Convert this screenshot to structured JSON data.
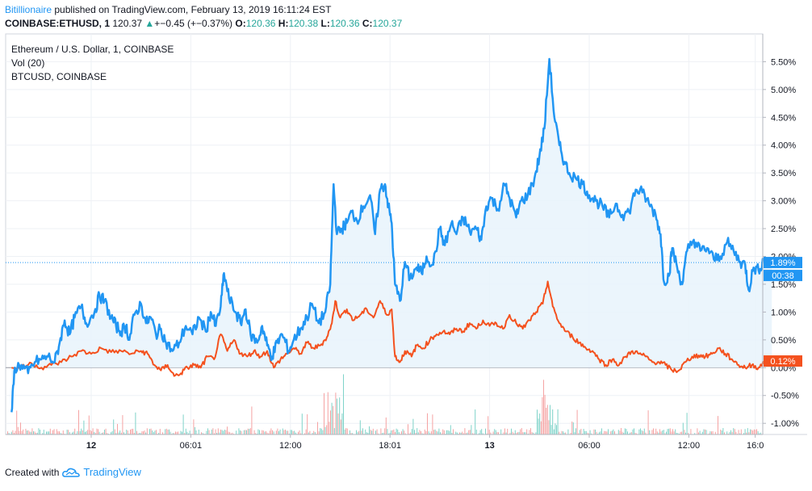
{
  "header": {
    "author": "Bitillionaire",
    "published_text": "published on TradingView.com, February 13, 2019 16:11:24 EST",
    "symbol": "COINBASE:ETHUSD, 1",
    "last": "120.37",
    "change_arrow": "▲",
    "change": "+−0.45 (+−0.37%)",
    "o_label": "O:",
    "o_value": "120.36",
    "h_label": "H:",
    "h_value": "120.38",
    "l_label": "L:",
    "l_value": "120.36",
    "c_label": "C:",
    "c_value": "120.37"
  },
  "legend": {
    "main": "Ethereum / U.S. Dollar, 1, COINBASE",
    "vol": "Vol (20)",
    "compare": "BTCUSD, COINBASE"
  },
  "badges": {
    "eth_pct": "1.89%",
    "eth_countdown": "00:38",
    "btc_pct": "0.12%"
  },
  "footer": {
    "created_with": "Created with",
    "brand": "TradingView"
  },
  "colors": {
    "eth": "#2196f3",
    "btc": "#f4511e",
    "area": "#e8f3fc",
    "grid": "#eef1f5",
    "vol_up": "#7fd3c9",
    "vol_down": "#f5a3a3"
  },
  "chart_data": {
    "type": "line",
    "y_unit": "%",
    "ylim": [
      -1.3,
      5.85
    ],
    "y_ticks": [
      "5.50%",
      "5.00%",
      "4.50%",
      "4.00%",
      "3.50%",
      "3.00%",
      "2.50%",
      "2.00%",
      "1.50%",
      "1.00%",
      "0.50%",
      "0.00%",
      "-0.50%",
      "-1.00%"
    ],
    "y_tick_values": [
      5.5,
      5.0,
      4.5,
      4.0,
      3.5,
      3.0,
      2.5,
      2.0,
      1.5,
      1.0,
      0.5,
      0.0,
      -0.5,
      -1.0
    ],
    "x_ticks": [
      "12",
      "06:01",
      "12:00",
      "18:01",
      "13",
      "06:00",
      "12:00",
      "16:0"
    ],
    "x_tick_hours": [
      0,
      6,
      12,
      18,
      24,
      30,
      36,
      40
    ],
    "x_range_hours": [
      -4.8,
      41
    ],
    "series": [
      {
        "name": "Ethereum / U.S. Dollar",
        "points": [
          [
            -4.8,
            -0.8
          ],
          [
            -4.6,
            0.0
          ],
          [
            -4.2,
            0.05
          ],
          [
            -3.8,
            -0.1
          ],
          [
            -3.4,
            0.1
          ],
          [
            -3.0,
            0.15
          ],
          [
            -2.6,
            0.2
          ],
          [
            -2.2,
            0.1
          ],
          [
            -1.9,
            0.45
          ],
          [
            -1.6,
            0.85
          ],
          [
            -1.3,
            0.6
          ],
          [
            -1.0,
            0.9
          ],
          [
            -0.6,
            1.1
          ],
          [
            -0.3,
            0.8
          ],
          [
            0.2,
            1.0
          ],
          [
            0.5,
            1.3
          ],
          [
            0.8,
            1.2
          ],
          [
            1.2,
            0.9
          ],
          [
            1.5,
            0.75
          ],
          [
            1.8,
            0.65
          ],
          [
            2.1,
            0.75
          ],
          [
            2.3,
            0.5
          ],
          [
            2.6,
            0.95
          ],
          [
            3.0,
            1.15
          ],
          [
            3.3,
            0.8
          ],
          [
            3.6,
            0.9
          ],
          [
            3.9,
            0.6
          ],
          [
            4.2,
            0.7
          ],
          [
            4.5,
            0.45
          ],
          [
            4.9,
            0.3
          ],
          [
            5.3,
            0.45
          ],
          [
            5.7,
            0.75
          ],
          [
            6.1,
            0.6
          ],
          [
            6.5,
            0.9
          ],
          [
            6.9,
            0.65
          ],
          [
            7.2,
            1.0
          ],
          [
            7.5,
            0.75
          ],
          [
            7.8,
            1.1
          ],
          [
            8.0,
            1.7
          ],
          [
            8.3,
            1.25
          ],
          [
            8.7,
            1.0
          ],
          [
            9.0,
            0.8
          ],
          [
            9.3,
            1.05
          ],
          [
            9.6,
            0.6
          ],
          [
            10.0,
            0.45
          ],
          [
            10.3,
            0.75
          ],
          [
            10.6,
            0.4
          ],
          [
            10.9,
            0.2
          ],
          [
            11.2,
            0.45
          ],
          [
            11.5,
            0.6
          ],
          [
            11.9,
            0.3
          ],
          [
            12.2,
            0.5
          ],
          [
            12.6,
            0.7
          ],
          [
            13.0,
            0.9
          ],
          [
            13.3,
            1.15
          ],
          [
            13.7,
            0.8
          ],
          [
            14.1,
            1.0
          ],
          [
            14.4,
            1.5
          ],
          [
            14.6,
            3.3
          ],
          [
            14.8,
            2.4
          ],
          [
            15.1,
            2.5
          ],
          [
            15.4,
            2.6
          ],
          [
            15.7,
            2.8
          ],
          [
            16.0,
            2.65
          ],
          [
            16.4,
            2.9
          ],
          [
            16.8,
            3.1
          ],
          [
            17.1,
            2.4
          ],
          [
            17.4,
            3.2
          ],
          [
            17.7,
            3.3
          ],
          [
            17.9,
            2.9
          ],
          [
            18.1,
            2.6
          ],
          [
            18.3,
            1.5
          ],
          [
            18.6,
            1.2
          ],
          [
            18.9,
            1.9
          ],
          [
            19.2,
            1.6
          ],
          [
            19.6,
            1.8
          ],
          [
            19.9,
            1.7
          ],
          [
            20.2,
            2.0
          ],
          [
            20.6,
            1.85
          ],
          [
            21.0,
            2.5
          ],
          [
            21.3,
            2.2
          ],
          [
            21.7,
            2.6
          ],
          [
            22.0,
            2.4
          ],
          [
            22.4,
            2.7
          ],
          [
            22.8,
            2.45
          ],
          [
            23.2,
            2.5
          ],
          [
            23.5,
            2.3
          ],
          [
            23.8,
            2.9
          ],
          [
            24.1,
            3.05
          ],
          [
            24.5,
            2.85
          ],
          [
            24.9,
            3.3
          ],
          [
            25.2,
            3.05
          ],
          [
            25.6,
            2.7
          ],
          [
            25.9,
            3.0
          ],
          [
            26.3,
            3.1
          ],
          [
            26.7,
            3.4
          ],
          [
            27.0,
            3.8
          ],
          [
            27.3,
            4.3
          ],
          [
            27.6,
            5.55
          ],
          [
            27.9,
            4.5
          ],
          [
            28.2,
            4.0
          ],
          [
            28.5,
            3.7
          ],
          [
            28.8,
            3.5
          ],
          [
            29.2,
            3.4
          ],
          [
            29.6,
            3.3
          ],
          [
            30.0,
            3.1
          ],
          [
            30.4,
            3.0
          ],
          [
            30.8,
            2.9
          ],
          [
            31.2,
            2.7
          ],
          [
            31.6,
            2.95
          ],
          [
            32.0,
            2.75
          ],
          [
            32.4,
            2.8
          ],
          [
            32.8,
            3.2
          ],
          [
            33.2,
            3.15
          ],
          [
            33.6,
            2.95
          ],
          [
            34.0,
            2.75
          ],
          [
            34.3,
            2.4
          ],
          [
            34.5,
            1.55
          ],
          [
            34.8,
            1.65
          ],
          [
            35.0,
            2.15
          ],
          [
            35.3,
            1.8
          ],
          [
            35.6,
            1.5
          ],
          [
            35.9,
            2.1
          ],
          [
            36.3,
            2.3
          ],
          [
            36.7,
            2.1
          ],
          [
            37.1,
            2.15
          ],
          [
            37.5,
            1.95
          ],
          [
            37.9,
            2.0
          ],
          [
            38.3,
            2.25
          ],
          [
            38.7,
            2.1
          ],
          [
            39.1,
            1.9
          ],
          [
            39.4,
            1.85
          ],
          [
            39.6,
            1.4
          ],
          [
            39.9,
            1.8
          ],
          [
            40.2,
            1.75
          ],
          [
            40.5,
            1.95
          ],
          [
            41.0,
            1.89
          ]
        ]
      },
      {
        "name": "BTCUSD",
        "points": [
          [
            -4.8,
            0.0
          ],
          [
            -4.2,
            0.0
          ],
          [
            -3.6,
            0.08
          ],
          [
            -3.0,
            0.0
          ],
          [
            -2.4,
            0.05
          ],
          [
            -1.8,
            0.1
          ],
          [
            -1.2,
            0.2
          ],
          [
            -0.6,
            0.3
          ],
          [
            0.0,
            0.25
          ],
          [
            0.6,
            0.35
          ],
          [
            1.2,
            0.28
          ],
          [
            1.8,
            0.3
          ],
          [
            2.4,
            0.25
          ],
          [
            3.0,
            0.3
          ],
          [
            3.4,
            0.25
          ],
          [
            3.8,
            0.05
          ],
          [
            4.2,
            -0.05
          ],
          [
            4.6,
            0.05
          ],
          [
            5.0,
            -0.15
          ],
          [
            5.4,
            -0.1
          ],
          [
            5.8,
            0.0
          ],
          [
            6.2,
            0.05
          ],
          [
            6.6,
            0.0
          ],
          [
            7.0,
            0.2
          ],
          [
            7.4,
            0.15
          ],
          [
            7.8,
            0.6
          ],
          [
            8.2,
            0.3
          ],
          [
            8.6,
            0.5
          ],
          [
            9.0,
            0.25
          ],
          [
            9.4,
            0.2
          ],
          [
            9.8,
            0.3
          ],
          [
            10.2,
            0.2
          ],
          [
            10.6,
            0.3
          ],
          [
            11.0,
            0.0
          ],
          [
            11.4,
            0.15
          ],
          [
            11.8,
            0.25
          ],
          [
            12.2,
            0.35
          ],
          [
            12.6,
            0.25
          ],
          [
            13.0,
            0.45
          ],
          [
            13.4,
            0.35
          ],
          [
            13.8,
            0.4
          ],
          [
            14.2,
            0.55
          ],
          [
            14.5,
            0.8
          ],
          [
            14.7,
            1.2
          ],
          [
            15.0,
            0.9
          ],
          [
            15.4,
            1.05
          ],
          [
            15.8,
            0.85
          ],
          [
            16.2,
            0.95
          ],
          [
            16.6,
            1.05
          ],
          [
            17.0,
            0.9
          ],
          [
            17.4,
            1.2
          ],
          [
            17.8,
            0.95
          ],
          [
            18.1,
            1.05
          ],
          [
            18.3,
            0.2
          ],
          [
            18.6,
            0.1
          ],
          [
            18.9,
            0.3
          ],
          [
            19.3,
            0.2
          ],
          [
            19.6,
            0.4
          ],
          [
            20.0,
            0.35
          ],
          [
            20.4,
            0.5
          ],
          [
            20.8,
            0.6
          ],
          [
            21.2,
            0.65
          ],
          [
            21.6,
            0.6
          ],
          [
            22.0,
            0.7
          ],
          [
            22.4,
            0.65
          ],
          [
            22.8,
            0.8
          ],
          [
            23.2,
            0.7
          ],
          [
            23.6,
            0.85
          ],
          [
            24.0,
            0.75
          ],
          [
            24.4,
            0.8
          ],
          [
            24.8,
            0.7
          ],
          [
            25.2,
            0.95
          ],
          [
            25.6,
            0.8
          ],
          [
            26.0,
            0.7
          ],
          [
            26.4,
            0.85
          ],
          [
            26.8,
            1.0
          ],
          [
            27.2,
            1.15
          ],
          [
            27.5,
            1.55
          ],
          [
            27.8,
            1.1
          ],
          [
            28.2,
            0.8
          ],
          [
            28.6,
            0.65
          ],
          [
            29.0,
            0.55
          ],
          [
            29.4,
            0.45
          ],
          [
            29.8,
            0.35
          ],
          [
            30.2,
            0.3
          ],
          [
            30.6,
            0.15
          ],
          [
            31.0,
            0.05
          ],
          [
            31.4,
            0.15
          ],
          [
            31.8,
            0.05
          ],
          [
            32.2,
            0.2
          ],
          [
            32.6,
            0.3
          ],
          [
            33.0,
            0.25
          ],
          [
            33.4,
            0.2
          ],
          [
            33.8,
            0.1
          ],
          [
            34.2,
            0.1
          ],
          [
            34.6,
            0.05
          ],
          [
            35.0,
            -0.05
          ],
          [
            35.4,
            -0.05
          ],
          [
            35.8,
            0.1
          ],
          [
            36.2,
            0.2
          ],
          [
            36.6,
            0.22
          ],
          [
            37.0,
            0.2
          ],
          [
            37.4,
            0.25
          ],
          [
            37.8,
            0.35
          ],
          [
            38.2,
            0.25
          ],
          [
            38.6,
            0.15
          ],
          [
            39.0,
            0.05
          ],
          [
            39.4,
            0.0
          ],
          [
            39.8,
            0.05
          ],
          [
            40.2,
            0.0
          ],
          [
            40.6,
            0.1
          ],
          [
            41.0,
            0.12
          ]
        ]
      }
    ]
  }
}
